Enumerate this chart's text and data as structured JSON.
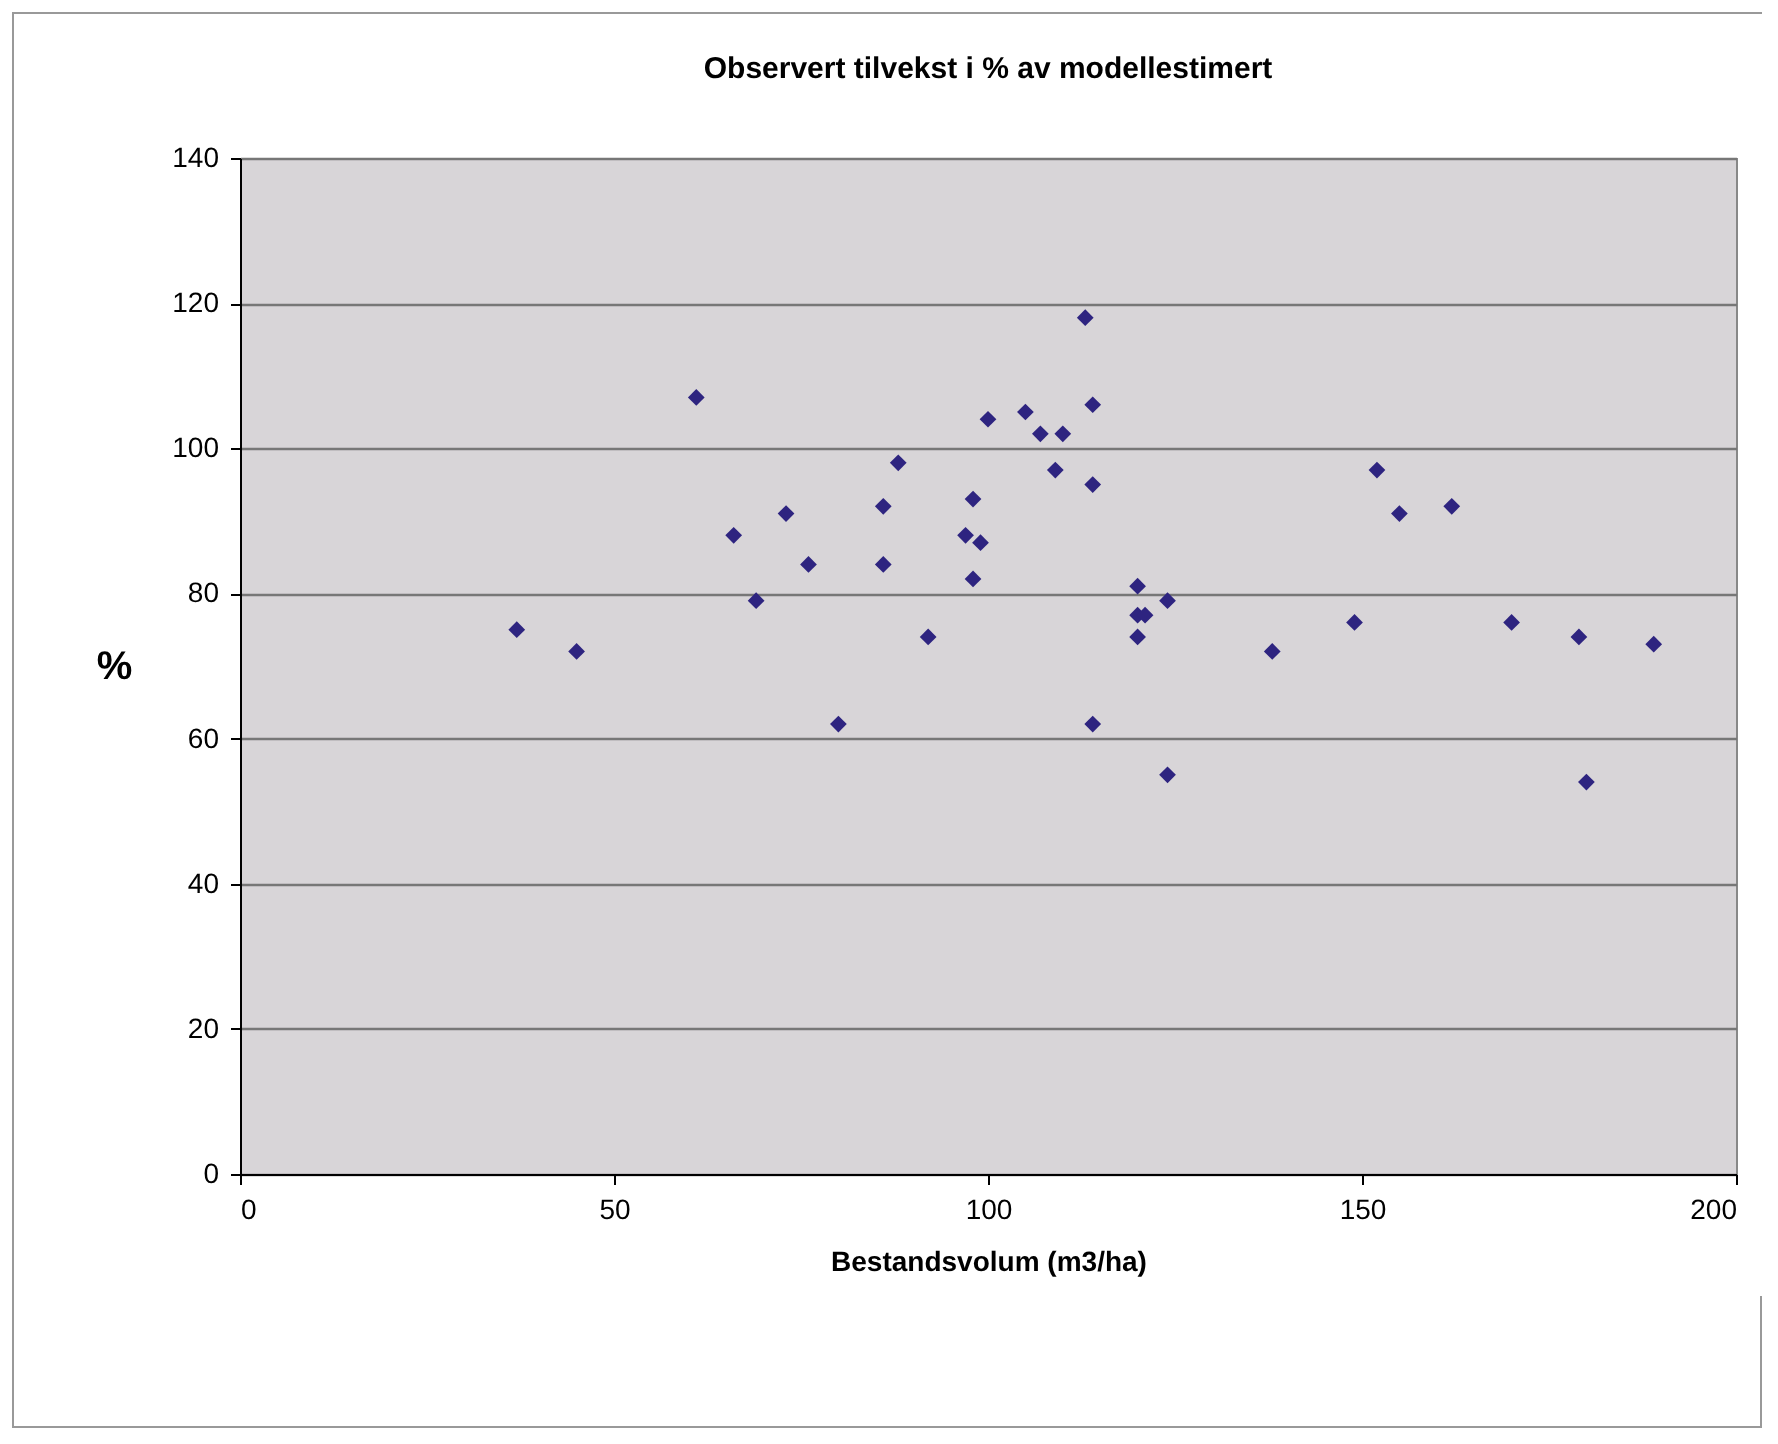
{
  "chart_data": {
    "type": "scatter",
    "title": "Observert tilvekst i % av modellestimert",
    "xlabel": "Bestandsvolum  (m3/ha)",
    "ylabel": "%",
    "x": [
      37,
      45,
      61,
      66,
      69,
      73,
      76,
      80,
      86,
      86,
      88,
      92,
      97,
      98,
      98,
      99,
      100,
      105,
      107,
      109,
      110,
      113,
      114,
      114,
      114,
      120,
      120,
      121,
      120,
      124,
      124,
      138,
      149,
      152,
      155,
      162,
      170,
      179,
      180,
      189
    ],
    "series": [
      {
        "color": "#2e2480",
        "values": [
          75,
          72,
          107,
          88,
          79,
          91,
          84,
          62,
          92,
          84,
          98,
          74,
          88,
          93,
          82,
          87,
          104,
          105,
          102,
          97,
          102,
          118,
          106,
          95,
          62,
          81,
          77,
          77,
          74,
          79,
          55,
          72,
          76,
          97,
          91,
          92,
          76,
          74,
          54,
          73
        ]
      }
    ],
    "xlim": [
      0,
      200
    ],
    "xticks": [
      0,
      50,
      100,
      150,
      200
    ],
    "ylim": [
      0,
      140
    ],
    "yticks": [
      0,
      20,
      40,
      60,
      80,
      100,
      120,
      140
    ],
    "grid": "y",
    "marker": "diamond"
  }
}
